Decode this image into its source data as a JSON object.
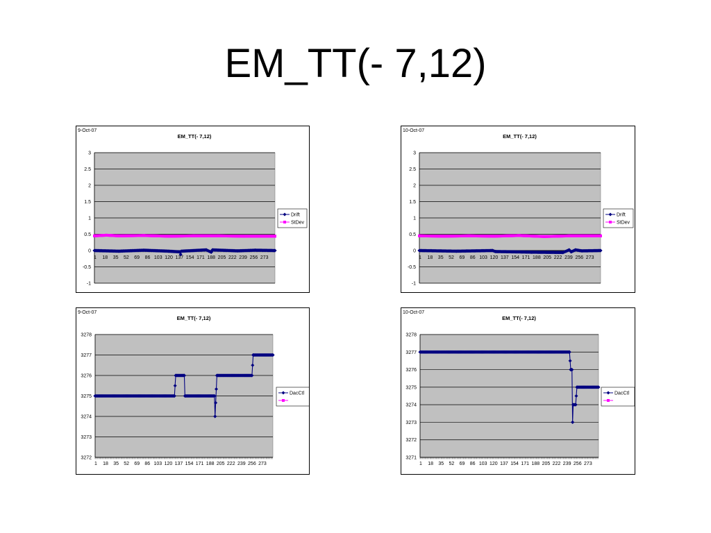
{
  "slide": {
    "title": "EM_TT(- 7,12)"
  },
  "chart_data": [
    {
      "type": "line",
      "date": "9-Oct-07",
      "title": "EM_TT(- 7,12)",
      "ylim": [
        -1,
        3
      ],
      "yticks": [
        "3",
        "2.5",
        "2",
        "1.5",
        "1",
        "0.5",
        "0",
        "-0.5",
        "-1"
      ],
      "ytick_values": [
        3,
        2.5,
        2,
        1.5,
        1,
        0.5,
        0,
        -0.5,
        -1
      ],
      "xticks": [
        "1",
        "18",
        "35",
        "52",
        "69",
        "86",
        "103",
        "120",
        "137",
        "154",
        "171",
        "188",
        "205",
        "222",
        "239",
        "256",
        "273"
      ],
      "x_start": 1,
      "x_end": 290,
      "x_axis_at": 0,
      "grid": true,
      "legend": "right",
      "series": [
        {
          "name": "Drift",
          "color": "#000080",
          "marker": "diamond",
          "points": [
            [
              1,
              0
            ],
            [
              40,
              -0.02
            ],
            [
              80,
              0.01
            ],
            [
              120,
              -0.02
            ],
            [
              138,
              -0.04
            ],
            [
              139,
              -0.12
            ],
            [
              140,
              -0.02
            ],
            [
              180,
              0.02
            ],
            [
              188,
              -0.05
            ],
            [
              190,
              0.02
            ],
            [
              230,
              -0.01
            ],
            [
              258,
              0.01
            ],
            [
              290,
              0.0
            ]
          ]
        },
        {
          "name": "StDev",
          "color": "#ff00ff",
          "marker": "square",
          "points": [
            [
              1,
              0.45
            ],
            [
              20,
              0.47
            ],
            [
              40,
              0.45
            ],
            [
              80,
              0.46
            ],
            [
              120,
              0.44
            ],
            [
              160,
              0.45
            ],
            [
              200,
              0.45
            ],
            [
              240,
              0.44
            ],
            [
              290,
              0.44
            ]
          ]
        }
      ]
    },
    {
      "type": "line",
      "date": "10-Oct-07",
      "title": "EM_TT(- 7,12)",
      "ylim": [
        -1,
        3
      ],
      "yticks": [
        "3",
        "2.5",
        "2",
        "1.5",
        "1",
        "0.5",
        "0",
        "-0.5",
        "-1"
      ],
      "ytick_values": [
        3,
        2.5,
        2,
        1.5,
        1,
        0.5,
        0,
        -0.5,
        -1
      ],
      "xticks": [
        "1",
        "18",
        "35",
        "52",
        "69",
        "86",
        "103",
        "120",
        "137",
        "154",
        "171",
        "188",
        "205",
        "222",
        "239",
        "256",
        "273"
      ],
      "x_start": 1,
      "x_end": 290,
      "x_axis_at": 0,
      "grid": true,
      "legend": "right",
      "series": [
        {
          "name": "Drift",
          "color": "#000080",
          "marker": "diamond",
          "points": [
            [
              1,
              0
            ],
            [
              60,
              -0.02
            ],
            [
              118,
              0
            ],
            [
              122,
              -0.03
            ],
            [
              180,
              -0.05
            ],
            [
              230,
              -0.06
            ],
            [
              240,
              0.02
            ],
            [
              243,
              -0.04
            ],
            [
              250,
              0.02
            ],
            [
              260,
              -0.01
            ],
            [
              290,
              0.0
            ]
          ]
        },
        {
          "name": "StDev",
          "color": "#ff00ff",
          "marker": "square",
          "points": [
            [
              1,
              0.45
            ],
            [
              40,
              0.44
            ],
            [
              80,
              0.45
            ],
            [
              120,
              0.44
            ],
            [
              160,
              0.46
            ],
            [
              200,
              0.43
            ],
            [
              240,
              0.45
            ],
            [
              290,
              0.45
            ]
          ]
        }
      ]
    },
    {
      "type": "line",
      "date": "9-Oct-07",
      "title": "EM_TT(- 7,12)",
      "ylim": [
        3272,
        3278
      ],
      "yticks": [
        "3278",
        "3277",
        "3276",
        "3275",
        "3274",
        "3273",
        "3272"
      ],
      "ytick_values": [
        3278,
        3277,
        3276,
        3275,
        3274,
        3273,
        3272
      ],
      "xticks": [
        "1",
        "18",
        "35",
        "52",
        "69",
        "86",
        "103",
        "120",
        "137",
        "154",
        "171",
        "188",
        "205",
        "222",
        "239",
        "256",
        "273"
      ],
      "x_start": 1,
      "x_end": 290,
      "x_axis_at": 3272,
      "grid": true,
      "legend": "right",
      "series": [
        {
          "name": "DacCtl",
          "color": "#000080",
          "marker": "diamond",
          "points": [
            [
              1,
              3275
            ],
            [
              130,
              3275
            ],
            [
              132,
              3276
            ],
            [
              146,
              3276
            ],
            [
              147,
              3275
            ],
            [
              195,
              3275
            ],
            [
              196,
              3274
            ],
            [
              199,
              3276
            ],
            [
              256,
              3276
            ],
            [
              258,
              3277
            ],
            [
              290,
              3277
            ]
          ]
        },
        {
          "name": "",
          "color": "#ff00ff",
          "marker": "square",
          "points": []
        }
      ]
    },
    {
      "type": "line",
      "date": "10-Oct-07",
      "title": "EM_TT(- 7,12)",
      "ylim": [
        3271,
        3278
      ],
      "yticks": [
        "3278",
        "3277",
        "3276",
        "3275",
        "3274",
        "3273",
        "3272",
        "3271"
      ],
      "ytick_values": [
        3278,
        3277,
        3276,
        3275,
        3274,
        3273,
        3272,
        3271
      ],
      "xticks": [
        "1",
        "18",
        "35",
        "52",
        "69",
        "86",
        "103",
        "120",
        "137",
        "154",
        "171",
        "188",
        "205",
        "222",
        "239",
        "256",
        "273"
      ],
      "x_start": 1,
      "x_end": 290,
      "x_axis_at": 3271,
      "grid": true,
      "legend": "right",
      "series": [
        {
          "name": "DacCtl",
          "color": "#000080",
          "marker": "diamond",
          "points": [
            [
              1,
              3277
            ],
            [
              243,
              3277
            ],
            [
              245,
              3276
            ],
            [
              247,
              3276
            ],
            [
              248,
              3273
            ],
            [
              249,
              3274
            ],
            [
              253,
              3274
            ],
            [
              255,
              3275
            ],
            [
              290,
              3275
            ]
          ]
        },
        {
          "name": "",
          "color": "#ff00ff",
          "marker": "square",
          "points": []
        }
      ]
    }
  ]
}
